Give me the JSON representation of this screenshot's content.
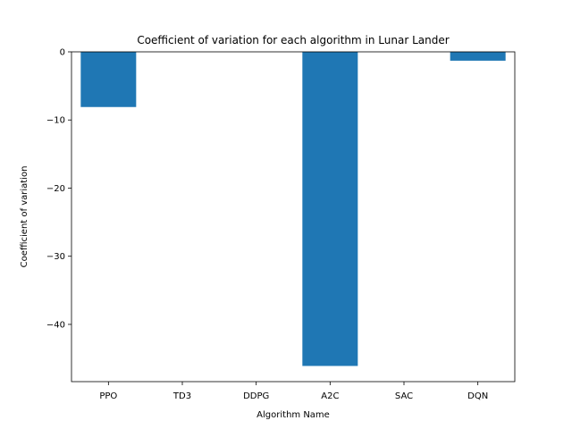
{
  "chart_data": {
    "type": "bar",
    "title": "Coefficient of variation for each algorithm in Lunar Lander",
    "xlabel": "Algorithm Name",
    "ylabel": "Coefficient of variation",
    "categories": [
      "PPO",
      "TD3",
      "DDPG",
      "A2C",
      "SAC",
      "DQN"
    ],
    "values": [
      -8.1,
      0,
      0,
      -46.1,
      0,
      -1.3
    ],
    "ylim": [
      -48.4,
      0
    ],
    "yticks": [
      0,
      -10,
      -20,
      -30,
      -40
    ],
    "ytick_labels": [
      "0",
      "−10",
      "−20",
      "−30",
      "−40"
    ],
    "grid": false,
    "bar_color": "#1f77b4"
  }
}
